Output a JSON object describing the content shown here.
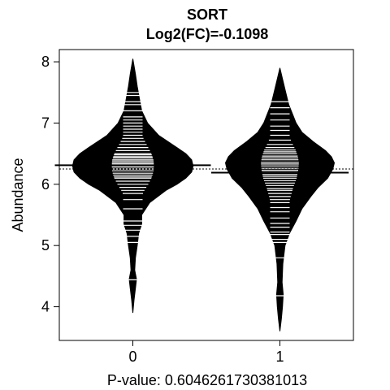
{
  "chart_data": {
    "type": "beanplot",
    "title": "SORT",
    "subtitle": "Log2(FC)=-0.1098",
    "xlabel": "P-value: 0.6046261730381013",
    "ylabel": "Abundance",
    "categories": [
      "0",
      "1"
    ],
    "yticks": [
      "4",
      "5",
      "6",
      "7",
      "8"
    ],
    "ylim": [
      3.45,
      8.2
    ],
    "xlim": [
      0.5,
      2.5
    ],
    "overall_mean": 6.25,
    "grid": false,
    "legend": "none",
    "groups": [
      {
        "name": "0",
        "mean": 6.31,
        "density": [
          [
            3.9,
            0.0
          ],
          [
            4.1,
            0.015
          ],
          [
            4.3,
            0.035
          ],
          [
            4.45,
            0.05
          ],
          [
            4.6,
            0.025
          ],
          [
            4.8,
            0.035
          ],
          [
            5.0,
            0.06
          ],
          [
            5.2,
            0.08
          ],
          [
            5.35,
            0.12
          ],
          [
            5.5,
            0.12
          ],
          [
            5.7,
            0.23
          ],
          [
            5.9,
            0.45
          ],
          [
            6.0,
            0.6
          ],
          [
            6.1,
            0.72
          ],
          [
            6.2,
            0.8
          ],
          [
            6.3,
            0.82
          ],
          [
            6.4,
            0.8
          ],
          [
            6.5,
            0.72
          ],
          [
            6.6,
            0.6
          ],
          [
            6.8,
            0.35
          ],
          [
            7.0,
            0.2
          ],
          [
            7.2,
            0.12
          ],
          [
            7.4,
            0.09
          ],
          [
            7.6,
            0.06
          ],
          [
            7.8,
            0.035
          ],
          [
            8.05,
            0.0
          ]
        ],
        "values": [
          4.44,
          5.05,
          5.15,
          5.25,
          5.33,
          5.4,
          5.6,
          5.75,
          5.85,
          5.9,
          5.95,
          6.0,
          6.05,
          6.1,
          6.12,
          6.15,
          6.18,
          6.22,
          6.25,
          6.28,
          6.3,
          6.33,
          6.35,
          6.38,
          6.4,
          6.43,
          6.45,
          6.48,
          6.5,
          6.55,
          6.6,
          6.65,
          6.7,
          6.75,
          6.8,
          6.85,
          6.9,
          6.95,
          7.0,
          7.05,
          7.1,
          7.2,
          7.3,
          7.35,
          7.45,
          7.5
        ]
      },
      {
        "name": "1",
        "mean": 6.19,
        "density": [
          [
            3.6,
            0.0
          ],
          [
            3.8,
            0.02
          ],
          [
            4.0,
            0.035
          ],
          [
            4.2,
            0.045
          ],
          [
            4.4,
            0.03
          ],
          [
            4.7,
            0.04
          ],
          [
            5.0,
            0.07
          ],
          [
            5.2,
            0.13
          ],
          [
            5.4,
            0.22
          ],
          [
            5.6,
            0.3
          ],
          [
            5.8,
            0.42
          ],
          [
            5.95,
            0.52
          ],
          [
            6.1,
            0.65
          ],
          [
            6.25,
            0.72
          ],
          [
            6.35,
            0.74
          ],
          [
            6.45,
            0.7
          ],
          [
            6.55,
            0.62
          ],
          [
            6.7,
            0.45
          ],
          [
            6.85,
            0.3
          ],
          [
            7.0,
            0.22
          ],
          [
            7.15,
            0.17
          ],
          [
            7.3,
            0.12
          ],
          [
            7.5,
            0.08
          ],
          [
            7.7,
            0.04
          ],
          [
            7.9,
            0.0
          ]
        ],
        "values": [
          4.18,
          4.8,
          5.05,
          5.1,
          5.18,
          5.22,
          5.3,
          5.36,
          5.45,
          5.55,
          5.62,
          5.7,
          5.75,
          5.8,
          5.85,
          5.9,
          5.93,
          5.98,
          6.02,
          6.06,
          6.1,
          6.13,
          6.16,
          6.2,
          6.23,
          6.26,
          6.3,
          6.33,
          6.36,
          6.4,
          6.43,
          6.46,
          6.5,
          6.53,
          6.56,
          6.6,
          6.65,
          6.72,
          6.8,
          6.88,
          6.95,
          7.05,
          7.15,
          7.25,
          7.35
        ]
      }
    ]
  }
}
